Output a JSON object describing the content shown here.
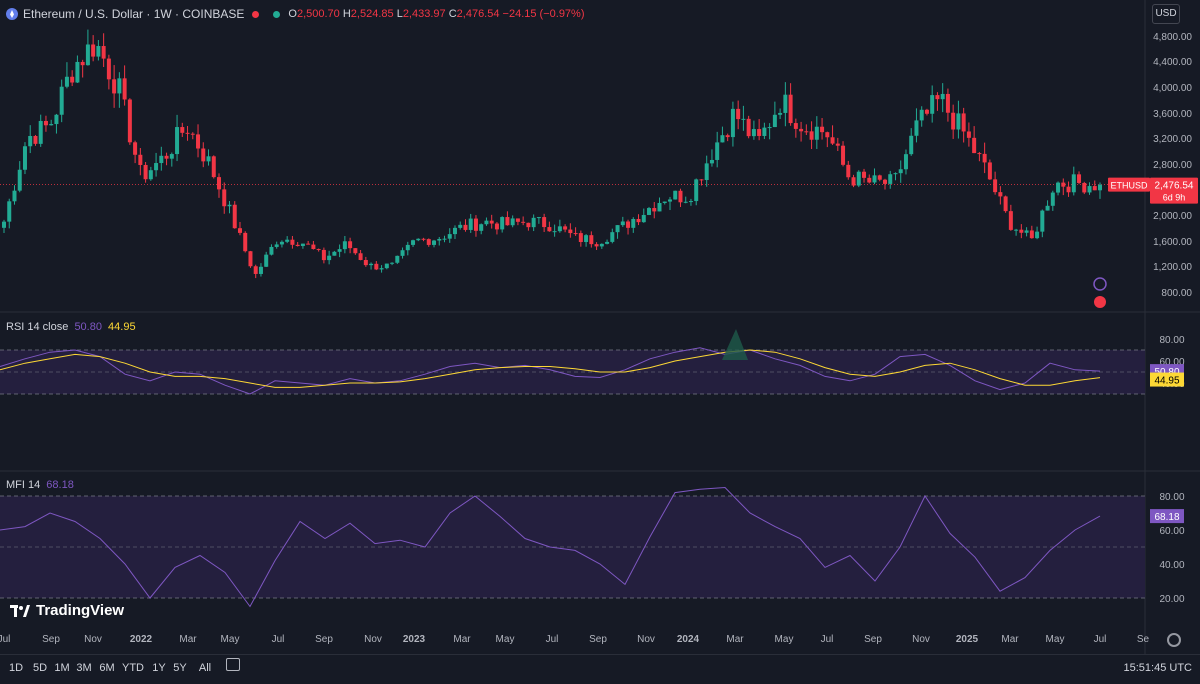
{
  "header": {
    "title": "Ethereum / U.S. Dollar · 1W · COINBASE",
    "o_key": "O",
    "o_val": "2,500.70",
    "h_key": "H",
    "h_val": "2,524.85",
    "l_key": "L",
    "l_val": "2,433.97",
    "c_key": "C",
    "c_val": "2,476.54",
    "change": "−24.15 (−0.97%)",
    "currency_button": "USD"
  },
  "price_tag": {
    "symbol": "ETHUSD",
    "price": "2,476.54",
    "countdown": "6d 9h"
  },
  "rsi": {
    "label": "RSI 14 close",
    "rsi_value": "50.80",
    "ma_value": "44.95"
  },
  "mfi": {
    "label": "MFI 14",
    "value": "68.18"
  },
  "timeframes": [
    "1D",
    "5D",
    "1M",
    "3M",
    "6M",
    "YTD",
    "1Y",
    "5Y",
    "All"
  ],
  "clock": "15:51:45 UTC",
  "brand": "TradingView",
  "colors": {
    "up": "#22ab94",
    "down": "#f23645",
    "rsi_line": "#7e57c2",
    "rsi_ma": "#fdd835",
    "band_fill": "#241f3e",
    "background": "#161a25"
  },
  "chart_data": [
    {
      "type": "candlestick",
      "title": "Ethereum / U.S. Dollar · 1W · COINBASE",
      "y_ticks": [
        "4,800.00",
        "4,400.00",
        "4,000.00",
        "3,600.00",
        "3,200.00",
        "2,800.00",
        "2,000.00",
        "1,600.00",
        "1,200.00",
        "800.00"
      ],
      "x_ticks": [
        "Jul",
        "Sep",
        "Nov",
        "2022",
        "Mar",
        "May",
        "Jul",
        "Sep",
        "Nov",
        "2023",
        "Mar",
        "May",
        "Jul",
        "Sep",
        "Nov",
        "2024",
        "Mar",
        "May",
        "Jul",
        "Sep",
        "Nov",
        "2025",
        "Mar",
        "May",
        "Jul",
        "Se"
      ],
      "last_close": 2476.54,
      "approx_weekly_close_path": [
        [
          "2021-07",
          1900
        ],
        [
          "2021-08",
          3200
        ],
        [
          "2021-09",
          3400
        ],
        [
          "2021-10",
          4300
        ],
        [
          "2021-11",
          4700
        ],
        [
          "2021-12",
          4000
        ],
        [
          "2022-01",
          2600
        ],
        [
          "2022-02",
          2900
        ],
        [
          "2022-03",
          3400
        ],
        [
          "2022-04",
          2800
        ],
        [
          "2022-05",
          1950
        ],
        [
          "2022-06",
          1050
        ],
        [
          "2022-07",
          1650
        ],
        [
          "2022-08",
          1600
        ],
        [
          "2022-09",
          1320
        ],
        [
          "2022-10",
          1550
        ],
        [
          "2022-11",
          1200
        ],
        [
          "2022-12",
          1200
        ],
        [
          "2023-01",
          1600
        ],
        [
          "2023-02",
          1650
        ],
        [
          "2023-03",
          1800
        ],
        [
          "2023-04",
          1900
        ],
        [
          "2023-05",
          1850
        ],
        [
          "2023-06",
          1900
        ],
        [
          "2023-07",
          1850
        ],
        [
          "2023-08",
          1650
        ],
        [
          "2023-09",
          1600
        ],
        [
          "2023-10",
          1800
        ],
        [
          "2023-11",
          2050
        ],
        [
          "2023-12",
          2300
        ],
        [
          "2024-01",
          2300
        ],
        [
          "2024-02",
          3000
        ],
        [
          "2024-03",
          3600
        ],
        [
          "2024-04",
          3100
        ],
        [
          "2024-05",
          3800
        ],
        [
          "2024-06",
          3400
        ],
        [
          "2024-07",
          3300
        ],
        [
          "2024-08",
          2600
        ],
        [
          "2024-09",
          2500
        ],
        [
          "2024-10",
          2500
        ],
        [
          "2024-11",
          3400
        ],
        [
          "2024-12",
          3800
        ],
        [
          "2025-01",
          3300
        ],
        [
          "2025-02",
          2700
        ],
        [
          "2025-03",
          1900
        ],
        [
          "2025-04",
          1600
        ],
        [
          "2025-05",
          2500
        ],
        [
          "2025-06",
          2500
        ],
        [
          "2025-07",
          2476.54
        ]
      ]
    },
    {
      "type": "line",
      "title": "RSI 14 close",
      "y_ticks": [
        "80.00",
        "60.00",
        "40.00"
      ],
      "band": [
        30,
        70
      ],
      "series": [
        {
          "name": "RSI",
          "values": [
            55,
            62,
            68,
            70,
            64,
            48,
            42,
            50,
            48,
            38,
            30,
            42,
            40,
            38,
            44,
            40,
            42,
            48,
            55,
            58,
            54,
            56,
            52,
            46,
            45,
            52,
            62,
            68,
            72,
            66,
            70,
            62,
            56,
            46,
            42,
            48,
            64,
            66,
            56,
            42,
            34,
            40,
            58,
            52,
            50.8
          ]
        },
        {
          "name": "MA",
          "values": [
            52,
            58,
            62,
            66,
            64,
            58,
            50,
            46,
            46,
            44,
            40,
            36,
            36,
            38,
            40,
            40,
            41,
            44,
            48,
            52,
            54,
            55,
            55,
            53,
            50,
            50,
            54,
            60,
            64,
            68,
            70,
            68,
            62,
            54,
            48,
            46,
            50,
            56,
            58,
            52,
            44,
            38,
            38,
            42,
            44.95
          ]
        }
      ]
    },
    {
      "type": "line",
      "title": "MFI 14",
      "y_ticks": [
        "80.00",
        "60.00",
        "40.00",
        "20.00"
      ],
      "band": [
        20,
        80
      ],
      "series": [
        {
          "name": "MFI",
          "values": [
            60,
            62,
            70,
            65,
            55,
            40,
            20,
            38,
            45,
            35,
            15,
            42,
            65,
            55,
            64,
            52,
            54,
            50,
            70,
            80,
            68,
            55,
            50,
            48,
            40,
            28,
            56,
            82,
            84,
            85,
            70,
            62,
            55,
            38,
            45,
            30,
            50,
            80,
            58,
            44,
            24,
            32,
            48,
            60,
            68.18
          ]
        }
      ]
    }
  ]
}
